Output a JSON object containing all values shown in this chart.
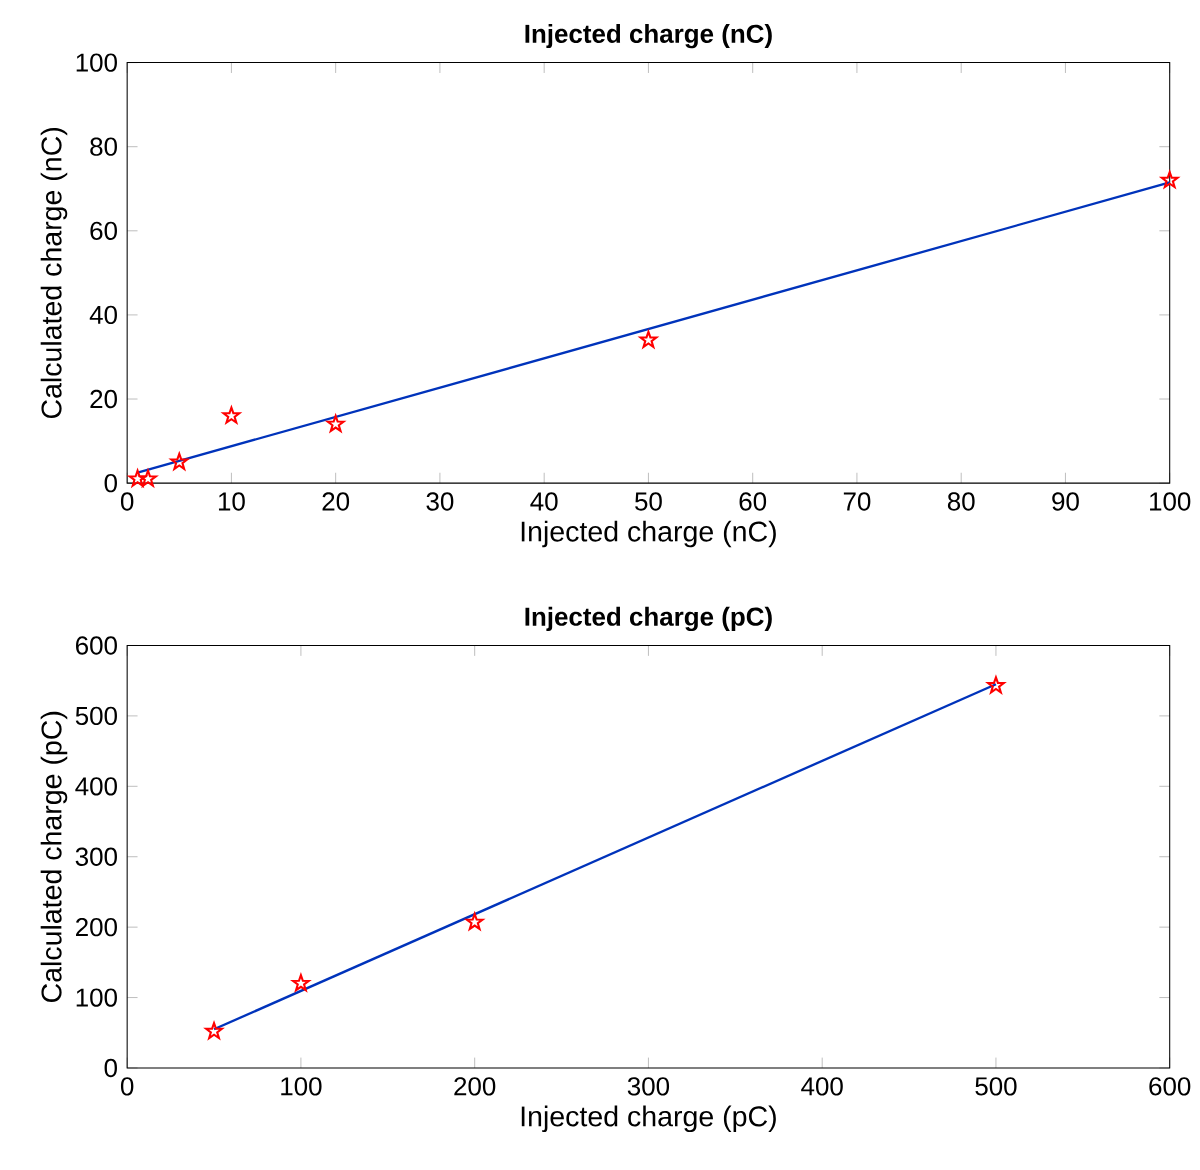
{
  "chart_data": [
    {
      "type": "scatter",
      "title": "Injected charge (nC)",
      "xlabel": "Injected charge (nC)",
      "ylabel": "Calculated charge (nC)",
      "xlim": [
        0,
        100
      ],
      "ylim": [
        0,
        100
      ],
      "xticks": [
        0,
        10,
        20,
        30,
        40,
        50,
        60,
        70,
        80,
        90,
        100
      ],
      "yticks": [
        0,
        20,
        40,
        60,
        80,
        100
      ],
      "grid": false,
      "series": [
        {
          "color": "#ff0000",
          "marker": "star",
          "x": [
            1,
            2,
            5,
            10,
            20,
            50,
            100
          ],
          "values": [
            1,
            1,
            5,
            16,
            14,
            34,
            72
          ]
        },
        {
          "type": "line",
          "color": "#0033bb",
          "marker": "none",
          "line_style": "solid",
          "x": [
            1,
            100
          ],
          "values": [
            2.5,
            71.5
          ]
        }
      ]
    },
    {
      "type": "scatter",
      "title": "Injected charge (pC)",
      "xlabel": "Injected charge (pC)",
      "ylabel": "Calculated charge (pC)",
      "xlim": [
        0,
        600
      ],
      "ylim": [
        0,
        600
      ],
      "xticks": [
        0,
        100,
        200,
        300,
        400,
        500,
        600
      ],
      "yticks": [
        0,
        100,
        200,
        300,
        400,
        500,
        600
      ],
      "grid": false,
      "series": [
        {
          "color": "#ff0000",
          "marker": "star",
          "x": [
            50,
            100,
            200,
            500
          ],
          "values": [
            52,
            120,
            207,
            543
          ]
        },
        {
          "type": "line",
          "color": "#0033bb",
          "marker": "none",
          "line_style": "solid",
          "x": [
            50,
            500
          ],
          "values": [
            55,
            545
          ]
        }
      ]
    }
  ]
}
